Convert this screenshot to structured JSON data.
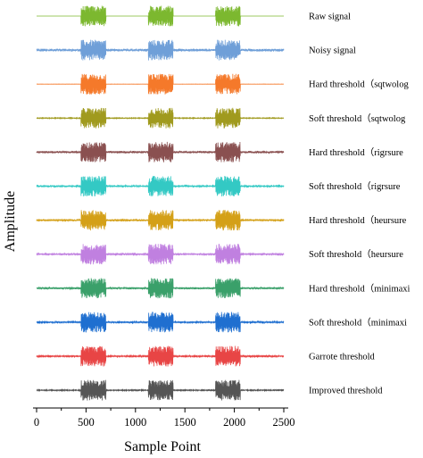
{
  "chart_data": {
    "type": "line",
    "xlabel": "Sample Point",
    "ylabel": "Amplitude",
    "xlim": [
      0,
      2500
    ],
    "xticks": [
      0,
      500,
      1000,
      1500,
      2000,
      2500
    ],
    "x_tick_labels": [
      "0",
      "500",
      "1000",
      "1500",
      "2000",
      "2500"
    ],
    "bursts": [
      [
        450,
        700
      ],
      [
        1130,
        1380
      ],
      [
        1810,
        2060
      ]
    ],
    "series": [
      {
        "name": "Raw signal",
        "color": "#7cb82f",
        "noise_level": 0.0
      },
      {
        "name": "Noisy signal",
        "color": "#6f9fd8",
        "noise_level": 0.45
      },
      {
        "name": "Hard threshold（sqtwolog",
        "color": "#f5792a",
        "noise_level": 0.03
      },
      {
        "name": "Soft threshold（sqtwolog",
        "color": "#a09a1e",
        "noise_level": 0.12
      },
      {
        "name": "Hard threshold（rigrsure",
        "color": "#8a5050",
        "noise_level": 0.35
      },
      {
        "name": "Soft threshold（rigrsure",
        "color": "#33c9c4",
        "noise_level": 0.25
      },
      {
        "name": "Hard threshold（heursure",
        "color": "#d4a017",
        "noise_level": 0.3
      },
      {
        "name": "Soft threshold（heursure",
        "color": "#c080e0",
        "noise_level": 0.22
      },
      {
        "name": "Hard threshold（minimaxi",
        "color": "#3aa06a",
        "noise_level": 0.32
      },
      {
        "name": "Soft threshold（minimaxi",
        "color": "#1f6fd0",
        "noise_level": 0.24
      },
      {
        "name": "Garrote threshold",
        "color": "#e84545",
        "noise_level": 0.2
      },
      {
        "name": "Improved threshold",
        "color": "#555555",
        "noise_level": 0.15
      }
    ]
  }
}
